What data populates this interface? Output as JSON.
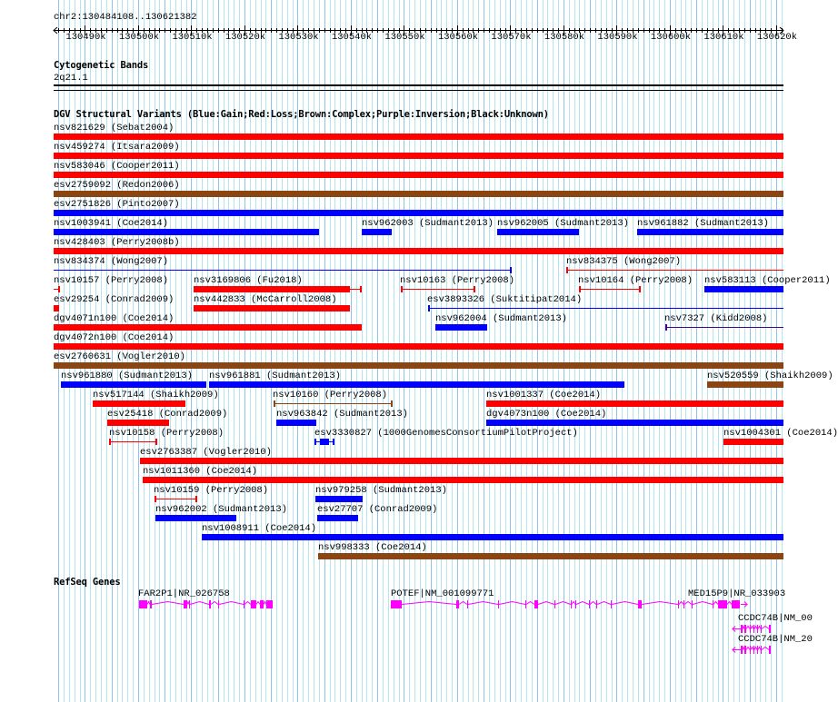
{
  "header": {
    "position": "chr2:130484108..130621382"
  },
  "ruler": {
    "ticks": [
      "130490k",
      "130500k",
      "130510k",
      "130520k",
      "130530k",
      "130540k",
      "130550k",
      "130560k",
      "130570k",
      "130580k",
      "130590k",
      "130600k",
      "130610k",
      "130620k"
    ]
  },
  "cytoband": {
    "title": "Cytogenetic Bands",
    "band": "2q21.1"
  },
  "dgv": {
    "title": "DGV Structural Variants (Blue:Gain;Red:Loss;Brown:Complex;Purple:Inversion;Black:Unknown)",
    "colors": {
      "gain": "#0000ff",
      "loss": "#ff0000",
      "complex": "#8b4513",
      "inversion": "#4b0082"
    },
    "features": [
      {
        "label": "nsv821629 (Sebat2004)",
        "type": "loss"
      },
      {
        "label": "nsv459274 (Itsara2009)",
        "type": "loss"
      },
      {
        "label": "nsv583046 (Cooper2011)",
        "type": "loss"
      },
      {
        "label": "esv2759092 (Redon2006)",
        "type": "complex"
      },
      {
        "label": "esv2751826 (Pinto2007)",
        "type": "gain"
      },
      {
        "label": "nsv1003941 (Coe2014)",
        "type": "gain"
      },
      {
        "label": "nsv962003 (Sudmant2013)",
        "type": "gain"
      },
      {
        "label": "nsv962005 (Sudmant2013)",
        "type": "gain"
      },
      {
        "label": "nsv961882 (Sudmant2013)",
        "type": "gain"
      },
      {
        "label": "nsv428403 (Perry2008b)",
        "type": "loss"
      },
      {
        "label": "nsv834374 (Wong2007)",
        "type": "gain"
      },
      {
        "label": "nsv834375 (Wong2007)",
        "type": "loss"
      },
      {
        "label": "nsv10157 (Perry2008)",
        "type": "loss"
      },
      {
        "label": "nsv3169806 (Fu2018)",
        "type": "loss"
      },
      {
        "label": "nsv10163 (Perry2008)",
        "type": "loss"
      },
      {
        "label": "nsv10164 (Perry2008)",
        "type": "loss"
      },
      {
        "label": "nsv583113 (Cooper2011)",
        "type": "gain"
      },
      {
        "label": "esv29254 (Conrad2009)",
        "type": "loss"
      },
      {
        "label": "nsv442833 (McCarroll2008)",
        "type": "loss"
      },
      {
        "label": "esv3893326 (Suktitipat2014)",
        "type": "gain"
      },
      {
        "label": "dgv4071n100 (Coe2014)",
        "type": "loss"
      },
      {
        "label": "nsv962004 (Sudmant2013)",
        "type": "gain"
      },
      {
        "label": "nsv7327 (Kidd2008)",
        "type": "inversion"
      },
      {
        "label": "dgv4072n100 (Coe2014)",
        "type": "loss"
      },
      {
        "label": "esv2760631 (Vogler2010)",
        "type": "complex"
      },
      {
        "label": "nsv961880 (Sudmant2013)",
        "type": "gain"
      },
      {
        "label": "nsv961881 (Sudmant2013)",
        "type": "gain"
      },
      {
        "label": "nsv520559 (Shaikh2009)",
        "type": "complex"
      },
      {
        "label": "nsv517144 (Shaikh2009)",
        "type": "loss"
      },
      {
        "label": "nsv10160 (Perry2008)",
        "type": "complex"
      },
      {
        "label": "nsv1001337 (Coe2014)",
        "type": "loss"
      },
      {
        "label": "esv25418 (Conrad2009)",
        "type": "loss"
      },
      {
        "label": "nsv963842 (Sudmant2013)",
        "type": "gain"
      },
      {
        "label": "dgv4073n100 (Coe2014)",
        "type": "gain"
      },
      {
        "label": "nsv10158 (Perry2008)",
        "type": "loss"
      },
      {
        "label": "esv3330827 (1000GenomesConsortiumPilotProject)",
        "type": "gain"
      },
      {
        "label": "nsv1004301 (Coe2014)",
        "type": "loss"
      },
      {
        "label": "esv2763387 (Vogler2010)",
        "type": "loss"
      },
      {
        "label": "nsv1011360 (Coe2014)",
        "type": "loss"
      },
      {
        "label": "nsv10159 (Perry2008)",
        "type": "loss"
      },
      {
        "label": "nsv979258 (Sudmant2013)",
        "type": "gain"
      },
      {
        "label": "nsv962002 (Sudmant2013)",
        "type": "gain"
      },
      {
        "label": "esv27707 (Conrad2009)",
        "type": "gain"
      },
      {
        "label": "nsv1008911 (Coe2014)",
        "type": "gain"
      },
      {
        "label": "nsv998333 (Coe2014)",
        "type": "complex"
      }
    ]
  },
  "refseq": {
    "title": "RefSeq Genes",
    "color": "#ff00ff",
    "genes": [
      {
        "label": "FAR2P1|NR_026758",
        "strand": "+"
      },
      {
        "label": "POTEF|NM_001099771",
        "strand": "+"
      },
      {
        "label": "MED15P9|NR_033903",
        "strand": "+"
      },
      {
        "label": "CCDC74B|NM_00",
        "strand": "-"
      },
      {
        "label": "CCDC74B|NM_20",
        "strand": "-"
      }
    ]
  }
}
